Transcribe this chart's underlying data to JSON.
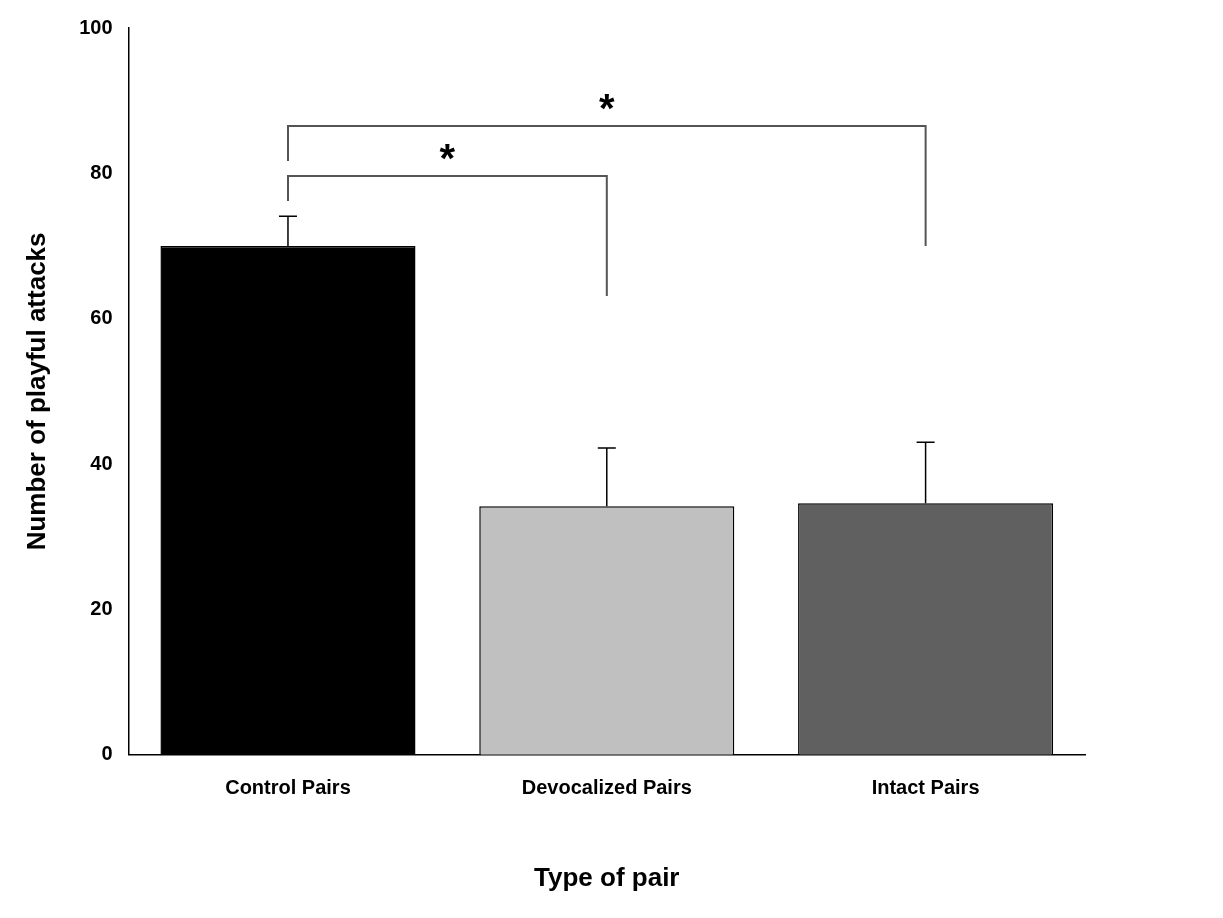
{
  "chart_data": {
    "type": "bar",
    "xlabel": "Type of pair",
    "ylabel": "Number of playful attacks",
    "categories": [
      "Control Pairs",
      "Devocalized Pairs",
      "Intact Pairs"
    ],
    "values": [
      70,
      34.2,
      34.6
    ],
    "colors": [
      "#000000",
      "#c0c0c0",
      "#606060"
    ],
    "errors": [
      [
        70,
        74.1
      ],
      [
        34.2,
        42.2
      ],
      [
        34.6,
        43
      ]
    ],
    "ylim": [
      0,
      100
    ],
    "yticks": [
      0,
      20,
      40,
      60,
      80,
      100
    ],
    "grid": false,
    "legend": false,
    "annotations": [
      "*",
      "*"
    ]
  }
}
